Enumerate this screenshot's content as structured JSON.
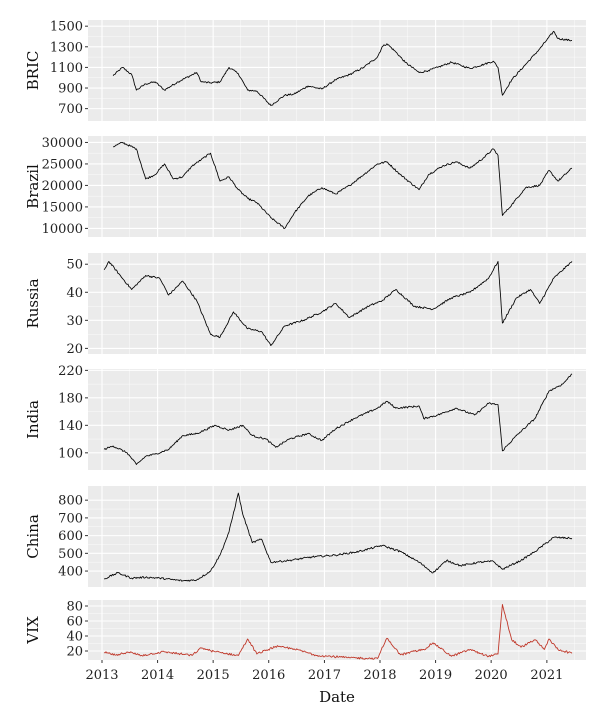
{
  "chart_data": {
    "type": "line",
    "xlabel": "Date",
    "x_ticks": [
      "2013",
      "2014",
      "2015",
      "2016",
      "2017",
      "2018",
      "2019",
      "2020",
      "2021"
    ],
    "xlim": [
      "2012-10-01",
      "2021-09-15"
    ],
    "panels": [
      {
        "ylabel": "BRIC",
        "ylim": [
          580,
          1560
        ],
        "y_ticks": [
          700,
          900,
          1100,
          1300,
          1500
        ],
        "line_color": "#000000",
        "series": [
          {
            "x": "2013-03",
            "y": 1020
          },
          {
            "x": "2013-05",
            "y": 1100
          },
          {
            "x": "2013-07",
            "y": 1030
          },
          {
            "x": "2013-08",
            "y": 880
          },
          {
            "x": "2013-10",
            "y": 940
          },
          {
            "x": "2013-12",
            "y": 960
          },
          {
            "x": "2014-02",
            "y": 880
          },
          {
            "x": "2014-05",
            "y": 960
          },
          {
            "x": "2014-09",
            "y": 1050
          },
          {
            "x": "2014-10",
            "y": 960
          },
          {
            "x": "2014-12",
            "y": 950
          },
          {
            "x": "2015-02",
            "y": 960
          },
          {
            "x": "2015-04",
            "y": 1100
          },
          {
            "x": "2015-06",
            "y": 1040
          },
          {
            "x": "2015-08",
            "y": 880
          },
          {
            "x": "2015-10",
            "y": 870
          },
          {
            "x": "2016-01",
            "y": 730
          },
          {
            "x": "2016-04",
            "y": 830
          },
          {
            "x": "2016-06",
            "y": 840
          },
          {
            "x": "2016-09",
            "y": 920
          },
          {
            "x": "2016-12",
            "y": 890
          },
          {
            "x": "2017-03",
            "y": 980
          },
          {
            "x": "2017-06",
            "y": 1030
          },
          {
            "x": "2017-09",
            "y": 1100
          },
          {
            "x": "2017-12",
            "y": 1200
          },
          {
            "x": "2018-01",
            "y": 1300
          },
          {
            "x": "2018-02",
            "y": 1330
          },
          {
            "x": "2018-04",
            "y": 1250
          },
          {
            "x": "2018-06",
            "y": 1150
          },
          {
            "x": "2018-09",
            "y": 1050
          },
          {
            "x": "2018-11",
            "y": 1070
          },
          {
            "x": "2019-01",
            "y": 1100
          },
          {
            "x": "2019-04",
            "y": 1150
          },
          {
            "x": "2019-06",
            "y": 1120
          },
          {
            "x": "2019-08",
            "y": 1090
          },
          {
            "x": "2019-11",
            "y": 1130
          },
          {
            "x": "2020-01",
            "y": 1160
          },
          {
            "x": "2020-02",
            "y": 1100
          },
          {
            "x": "2020-03",
            "y": 830
          },
          {
            "x": "2020-05",
            "y": 980
          },
          {
            "x": "2020-08",
            "y": 1130
          },
          {
            "x": "2020-11",
            "y": 1280
          },
          {
            "x": "2021-02",
            "y": 1450
          },
          {
            "x": "2021-03",
            "y": 1380
          },
          {
            "x": "2021-06",
            "y": 1360
          }
        ]
      },
      {
        "ylabel": "Brazil",
        "ylim": [
          8000,
          31500
        ],
        "y_ticks": [
          10000,
          15000,
          20000,
          25000,
          30000
        ],
        "line_color": "#000000",
        "series": [
          {
            "x": "2013-03",
            "y": 29000
          },
          {
            "x": "2013-05",
            "y": 30000
          },
          {
            "x": "2013-08",
            "y": 28500
          },
          {
            "x": "2013-10",
            "y": 21500
          },
          {
            "x": "2013-12",
            "y": 22500
          },
          {
            "x": "2014-02",
            "y": 25000
          },
          {
            "x": "2014-04",
            "y": 21500
          },
          {
            "x": "2014-06",
            "y": 22000
          },
          {
            "x": "2014-08",
            "y": 24500
          },
          {
            "x": "2014-10",
            "y": 26000
          },
          {
            "x": "2014-12",
            "y": 27500
          },
          {
            "x": "2015-02",
            "y": 21000
          },
          {
            "x": "2015-04",
            "y": 22000
          },
          {
            "x": "2015-06",
            "y": 19000
          },
          {
            "x": "2015-08",
            "y": 17000
          },
          {
            "x": "2015-10",
            "y": 16000
          },
          {
            "x": "2016-01",
            "y": 12500
          },
          {
            "x": "2016-04",
            "y": 10000
          },
          {
            "x": "2016-06",
            "y": 13500
          },
          {
            "x": "2016-09",
            "y": 17500
          },
          {
            "x": "2016-12",
            "y": 19500
          },
          {
            "x": "2017-03",
            "y": 18000
          },
          {
            "x": "2017-06",
            "y": 20000
          },
          {
            "x": "2017-09",
            "y": 22500
          },
          {
            "x": "2017-12",
            "y": 25000
          },
          {
            "x": "2018-02",
            "y": 25500
          },
          {
            "x": "2018-05",
            "y": 22500
          },
          {
            "x": "2018-09",
            "y": 19000
          },
          {
            "x": "2018-11",
            "y": 22500
          },
          {
            "x": "2019-02",
            "y": 24500
          },
          {
            "x": "2019-05",
            "y": 25500
          },
          {
            "x": "2019-08",
            "y": 24000
          },
          {
            "x": "2019-11",
            "y": 26500
          },
          {
            "x": "2020-01",
            "y": 28500
          },
          {
            "x": "2020-02",
            "y": 27000
          },
          {
            "x": "2020-03",
            "y": 13000
          },
          {
            "x": "2020-05",
            "y": 15500
          },
          {
            "x": "2020-08",
            "y": 19500
          },
          {
            "x": "2020-11",
            "y": 20000
          },
          {
            "x": "2021-01",
            "y": 23500
          },
          {
            "x": "2021-03",
            "y": 21000
          },
          {
            "x": "2021-06",
            "y": 24000
          }
        ]
      },
      {
        "ylabel": "Russia",
        "ylim": [
          18,
          54
        ],
        "y_ticks": [
          20,
          30,
          40,
          50
        ],
        "line_color": "#000000",
        "series": [
          {
            "x": "2013-01",
            "y": 48
          },
          {
            "x": "2013-02",
            "y": 51
          },
          {
            "x": "2013-05",
            "y": 45
          },
          {
            "x": "2013-07",
            "y": 41
          },
          {
            "x": "2013-10",
            "y": 46
          },
          {
            "x": "2014-01",
            "y": 45
          },
          {
            "x": "2014-03",
            "y": 39
          },
          {
            "x": "2014-06",
            "y": 44
          },
          {
            "x": "2014-09",
            "y": 37
          },
          {
            "x": "2014-12",
            "y": 25
          },
          {
            "x": "2015-02",
            "y": 24
          },
          {
            "x": "2015-05",
            "y": 33
          },
          {
            "x": "2015-08",
            "y": 27
          },
          {
            "x": "2015-11",
            "y": 26
          },
          {
            "x": "2016-01",
            "y": 21
          },
          {
            "x": "2016-04",
            "y": 28
          },
          {
            "x": "2016-08",
            "y": 30
          },
          {
            "x": "2016-12",
            "y": 33
          },
          {
            "x": "2017-03",
            "y": 36
          },
          {
            "x": "2017-06",
            "y": 31
          },
          {
            "x": "2017-10",
            "y": 35
          },
          {
            "x": "2018-01",
            "y": 37
          },
          {
            "x": "2018-04",
            "y": 41
          },
          {
            "x": "2018-08",
            "y": 35
          },
          {
            "x": "2018-12",
            "y": 34
          },
          {
            "x": "2019-04",
            "y": 38
          },
          {
            "x": "2019-08",
            "y": 40
          },
          {
            "x": "2019-12",
            "y": 45
          },
          {
            "x": "2020-02",
            "y": 51
          },
          {
            "x": "2020-03",
            "y": 29
          },
          {
            "x": "2020-06",
            "y": 38
          },
          {
            "x": "2020-09",
            "y": 41
          },
          {
            "x": "2020-11",
            "y": 36
          },
          {
            "x": "2021-02",
            "y": 45
          },
          {
            "x": "2021-06",
            "y": 51
          }
        ]
      },
      {
        "ylabel": "India",
        "ylim": [
          75,
          222
        ],
        "y_ticks": [
          100,
          140,
          180,
          220
        ],
        "line_color": "#000000",
        "series": [
          {
            "x": "2013-01",
            "y": 105
          },
          {
            "x": "2013-03",
            "y": 110
          },
          {
            "x": "2013-06",
            "y": 100
          },
          {
            "x": "2013-08",
            "y": 83
          },
          {
            "x": "2013-10",
            "y": 95
          },
          {
            "x": "2013-12",
            "y": 98
          },
          {
            "x": "2014-03",
            "y": 105
          },
          {
            "x": "2014-06",
            "y": 125
          },
          {
            "x": "2014-09",
            "y": 128
          },
          {
            "x": "2015-01",
            "y": 140
          },
          {
            "x": "2015-04",
            "y": 133
          },
          {
            "x": "2015-07",
            "y": 140
          },
          {
            "x": "2015-09",
            "y": 125
          },
          {
            "x": "2015-12",
            "y": 120
          },
          {
            "x": "2016-02",
            "y": 108
          },
          {
            "x": "2016-05",
            "y": 120
          },
          {
            "x": "2016-09",
            "y": 128
          },
          {
            "x": "2016-12",
            "y": 118
          },
          {
            "x": "2017-03",
            "y": 135
          },
          {
            "x": "2017-07",
            "y": 150
          },
          {
            "x": "2017-12",
            "y": 165
          },
          {
            "x": "2018-02",
            "y": 175
          },
          {
            "x": "2018-04",
            "y": 165
          },
          {
            "x": "2018-09",
            "y": 168
          },
          {
            "x": "2018-10",
            "y": 150
          },
          {
            "x": "2019-01",
            "y": 155
          },
          {
            "x": "2019-05",
            "y": 165
          },
          {
            "x": "2019-09",
            "y": 155
          },
          {
            "x": "2019-12",
            "y": 172
          },
          {
            "x": "2020-02",
            "y": 170
          },
          {
            "x": "2020-03",
            "y": 103
          },
          {
            "x": "2020-06",
            "y": 125
          },
          {
            "x": "2020-10",
            "y": 150
          },
          {
            "x": "2021-01",
            "y": 190
          },
          {
            "x": "2021-04",
            "y": 200
          },
          {
            "x": "2021-06",
            "y": 215
          }
        ]
      },
      {
        "ylabel": "China",
        "ylim": [
          310,
          880
        ],
        "y_ticks": [
          400,
          500,
          600,
          700,
          800
        ],
        "line_color": "#000000",
        "series": [
          {
            "x": "2013-01",
            "y": 355
          },
          {
            "x": "2013-04",
            "y": 390
          },
          {
            "x": "2013-07",
            "y": 360
          },
          {
            "x": "2013-10",
            "y": 365
          },
          {
            "x": "2014-01",
            "y": 360
          },
          {
            "x": "2014-06",
            "y": 345
          },
          {
            "x": "2014-09",
            "y": 350
          },
          {
            "x": "2014-12",
            "y": 400
          },
          {
            "x": "2015-02",
            "y": 490
          },
          {
            "x": "2015-04",
            "y": 620
          },
          {
            "x": "2015-06",
            "y": 840
          },
          {
            "x": "2015-07",
            "y": 720
          },
          {
            "x": "2015-09",
            "y": 560
          },
          {
            "x": "2015-11",
            "y": 580
          },
          {
            "x": "2016-01",
            "y": 450
          },
          {
            "x": "2016-05",
            "y": 460
          },
          {
            "x": "2016-10",
            "y": 480
          },
          {
            "x": "2017-03",
            "y": 490
          },
          {
            "x": "2017-08",
            "y": 510
          },
          {
            "x": "2018-01",
            "y": 545
          },
          {
            "x": "2018-05",
            "y": 510
          },
          {
            "x": "2018-09",
            "y": 450
          },
          {
            "x": "2018-12",
            "y": 390
          },
          {
            "x": "2019-03",
            "y": 460
          },
          {
            "x": "2019-06",
            "y": 430
          },
          {
            "x": "2019-10",
            "y": 450
          },
          {
            "x": "2020-01",
            "y": 455
          },
          {
            "x": "2020-03",
            "y": 410
          },
          {
            "x": "2020-07",
            "y": 460
          },
          {
            "x": "2020-10",
            "y": 510
          },
          {
            "x": "2021-02",
            "y": 590
          },
          {
            "x": "2021-06",
            "y": 585
          }
        ]
      },
      {
        "ylabel": "VIX",
        "ylim": [
          8,
          88
        ],
        "y_ticks": [
          20,
          40,
          60,
          80
        ],
        "line_color": "#c0392b",
        "series": [
          {
            "x": "2013-01",
            "y": 18
          },
          {
            "x": "2013-04",
            "y": 14
          },
          {
            "x": "2013-06",
            "y": 19
          },
          {
            "x": "2013-09",
            "y": 14
          },
          {
            "x": "2014-02",
            "y": 19
          },
          {
            "x": "2014-08",
            "y": 14
          },
          {
            "x": "2014-10",
            "y": 24
          },
          {
            "x": "2015-01",
            "y": 19
          },
          {
            "x": "2015-06",
            "y": 14
          },
          {
            "x": "2015-08",
            "y": 36
          },
          {
            "x": "2015-10",
            "y": 16
          },
          {
            "x": "2016-02",
            "y": 26
          },
          {
            "x": "2016-06",
            "y": 23
          },
          {
            "x": "2016-11",
            "y": 14
          },
          {
            "x": "2017-06",
            "y": 11
          },
          {
            "x": "2017-12",
            "y": 10
          },
          {
            "x": "2018-02",
            "y": 37
          },
          {
            "x": "2018-05",
            "y": 15
          },
          {
            "x": "2018-10",
            "y": 22
          },
          {
            "x": "2018-12",
            "y": 31
          },
          {
            "x": "2019-04",
            "y": 13
          },
          {
            "x": "2019-08",
            "y": 22
          },
          {
            "x": "2019-12",
            "y": 13
          },
          {
            "x": "2020-02",
            "y": 16
          },
          {
            "x": "2020-03",
            "y": 82
          },
          {
            "x": "2020-05",
            "y": 35
          },
          {
            "x": "2020-07",
            "y": 25
          },
          {
            "x": "2020-10",
            "y": 35
          },
          {
            "x": "2020-12",
            "y": 22
          },
          {
            "x": "2021-01",
            "y": 36
          },
          {
            "x": "2021-03",
            "y": 22
          },
          {
            "x": "2021-06",
            "y": 17
          }
        ]
      }
    ]
  }
}
